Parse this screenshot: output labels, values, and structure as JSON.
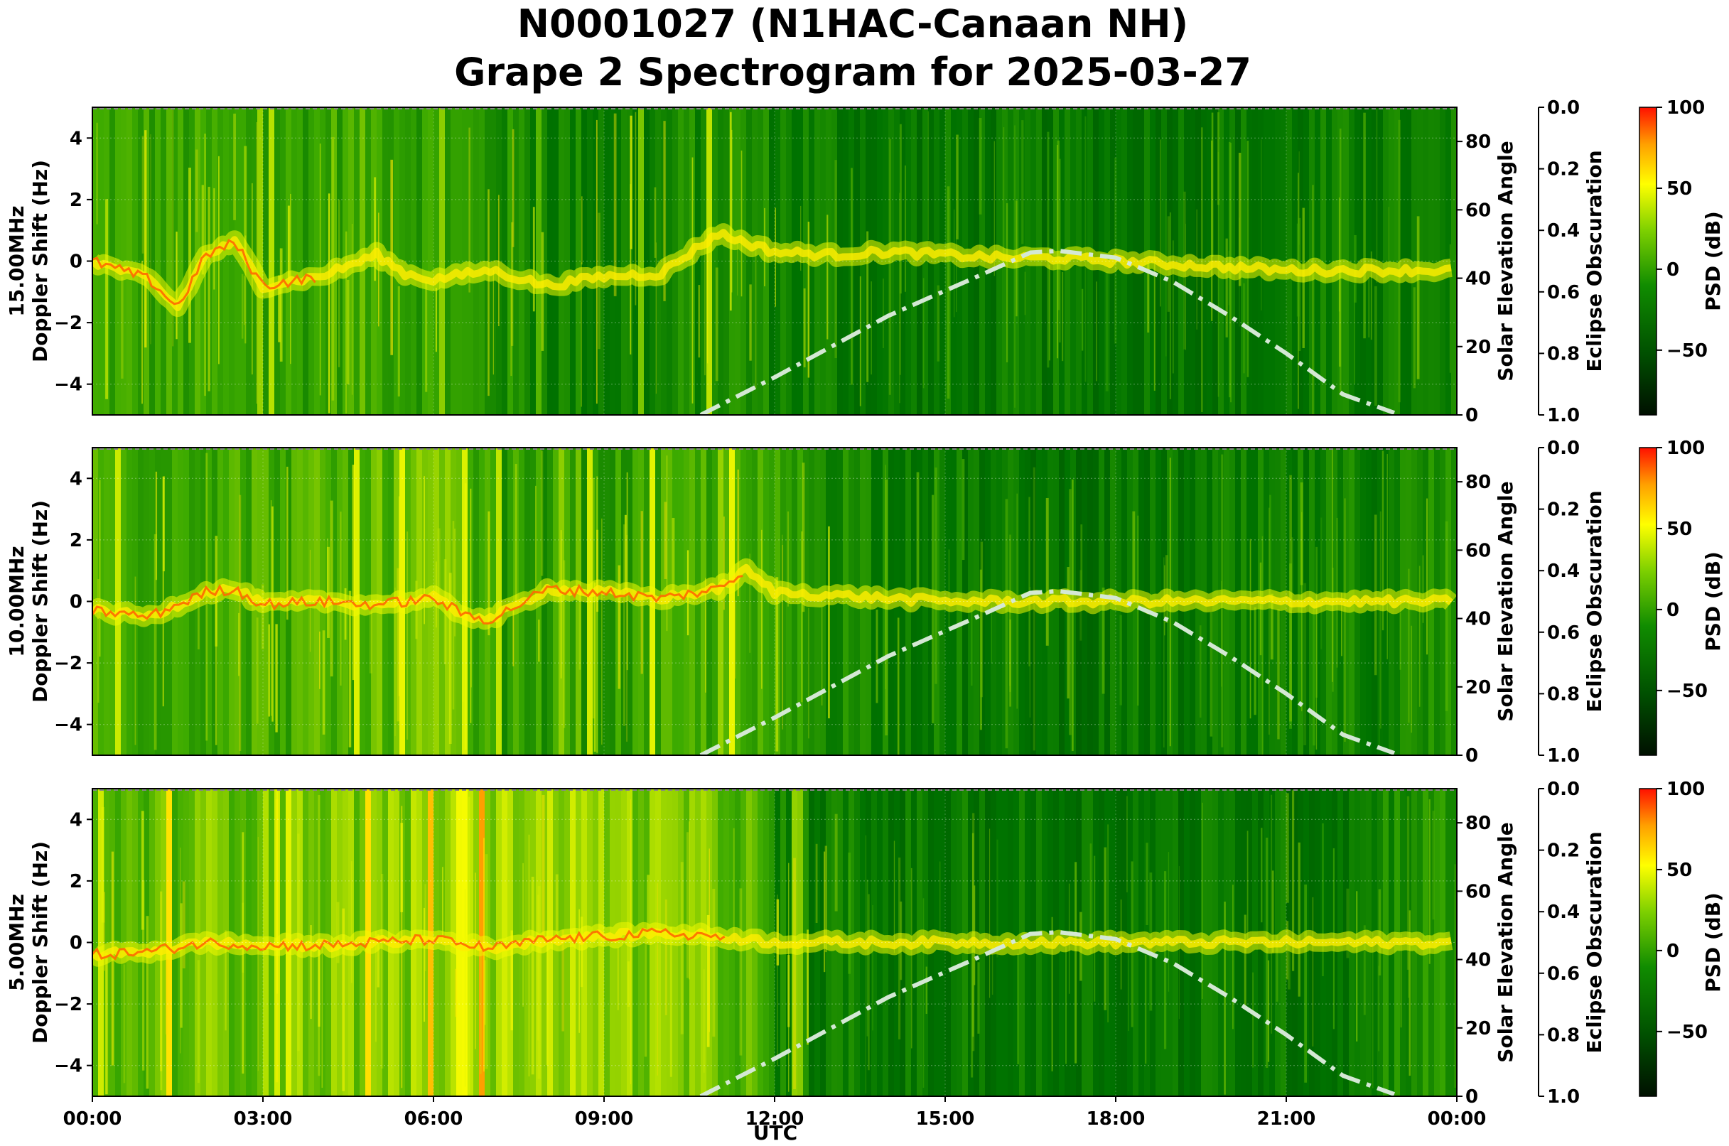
{
  "figure": {
    "title_line1": "N0001027 (N1HAC-Canaan NH)",
    "title_line2": "Grape 2 Spectrogram for 2025-03-27",
    "xlabel": "UTC",
    "x_tick_labels": [
      "00:00",
      "03:00",
      "06:00",
      "09:00",
      "12:00",
      "15:00",
      "18:00",
      "21:00",
      "00:00"
    ]
  },
  "colors": {
    "background": "#ffffff",
    "solar_curve": "#d4e8d4",
    "spectrogram_dark": "#006e00",
    "spectrogram_bright": "#ffff00",
    "spectrogram_peak": "#ff2000"
  },
  "chart_data": [
    {
      "type": "heatmap",
      "frequency_label": "15.00MHz",
      "ylabel": "Doppler Shift (Hz)",
      "ylim": [
        -5,
        5
      ],
      "y_ticks": [
        -4,
        -2,
        0,
        2,
        4
      ],
      "y_tick_labels": [
        "−4",
        "−2",
        "0",
        "2",
        "4"
      ],
      "xlim": [
        "00:00",
        "24:00"
      ],
      "solar_axis_label": "Solar Elevation Angle",
      "solar_ticks": [
        0,
        20,
        40,
        60,
        80
      ],
      "solar_ylim": [
        0,
        90
      ],
      "eclipse_axis_label": "Eclipse Obscuration",
      "eclipse_ticks": [
        "0.0",
        "0.2",
        "0.4",
        "0.6",
        "0.8",
        "1.0"
      ],
      "colorbar_label": "PSD (dB)",
      "colorbar_ticks": [
        "100",
        "50",
        "0",
        "−50"
      ],
      "colorbar_range": [
        -90,
        100
      ],
      "doppler_trace_hz": [
        [
          0,
          0
        ],
        [
          0.5,
          -0.3
        ],
        [
          1,
          -0.6
        ],
        [
          1.5,
          -1.5
        ],
        [
          2,
          0.2
        ],
        [
          2.5,
          0.6
        ],
        [
          3,
          -0.8
        ],
        [
          4,
          -0.5
        ],
        [
          5,
          0.2
        ],
        [
          5.5,
          -0.4
        ],
        [
          6,
          -0.6
        ],
        [
          7,
          -0.3
        ],
        [
          8,
          -0.8
        ],
        [
          9,
          -0.5
        ],
        [
          10,
          -0.4
        ],
        [
          11,
          0.9
        ],
        [
          12,
          0.3
        ],
        [
          13,
          0.2
        ],
        [
          14,
          0.3
        ],
        [
          15,
          0.2
        ],
        [
          16,
          0.1
        ],
        [
          17,
          0.1
        ],
        [
          18,
          0.0
        ],
        [
          19,
          -0.1
        ],
        [
          20,
          -0.2
        ],
        [
          21,
          -0.3
        ],
        [
          22,
          -0.3
        ],
        [
          23,
          -0.3
        ],
        [
          24,
          -0.3
        ]
      ],
      "solar_elevation_deg": [
        [
          10.7,
          0
        ],
        [
          12,
          11
        ],
        [
          14,
          29
        ],
        [
          15.5,
          40
        ],
        [
          16.5,
          47.5
        ],
        [
          17,
          48
        ],
        [
          18,
          46
        ],
        [
          19,
          39
        ],
        [
          20,
          29
        ],
        [
          21,
          18
        ],
        [
          22,
          6
        ],
        [
          23,
          0
        ]
      ]
    },
    {
      "type": "heatmap",
      "frequency_label": "10.00MHz",
      "ylabel": "Doppler Shift (Hz)",
      "ylim": [
        -5,
        5
      ],
      "y_ticks": [
        -4,
        -2,
        0,
        2,
        4
      ],
      "y_tick_labels": [
        "−4",
        "−2",
        "0",
        "2",
        "4"
      ],
      "xlim": [
        "00:00",
        "24:00"
      ],
      "solar_axis_label": "Solar Elevation Angle",
      "solar_ticks": [
        0,
        20,
        40,
        60,
        80
      ],
      "solar_ylim": [
        0,
        90
      ],
      "eclipse_axis_label": "Eclipse Obscuration",
      "eclipse_ticks": [
        "0.0",
        "0.2",
        "0.4",
        "0.6",
        "0.8",
        "1.0"
      ],
      "colorbar_label": "PSD (dB)",
      "colorbar_ticks": [
        "100",
        "50",
        "0",
        "−50"
      ],
      "colorbar_range": [
        -90,
        100
      ],
      "doppler_trace_hz": [
        [
          0,
          -0.3
        ],
        [
          1,
          -0.5
        ],
        [
          2,
          0.3
        ],
        [
          2.5,
          0.4
        ],
        [
          3,
          -0.1
        ],
        [
          4,
          0.0
        ],
        [
          5,
          -0.1
        ],
        [
          6,
          0.1
        ],
        [
          6.5,
          -0.4
        ],
        [
          7,
          -0.6
        ],
        [
          8,
          0.4
        ],
        [
          9,
          0.3
        ],
        [
          10,
          0.1
        ],
        [
          11,
          0.4
        ],
        [
          11.5,
          1.0
        ],
        [
          12,
          0.3
        ],
        [
          13,
          0.2
        ],
        [
          14,
          0.1
        ],
        [
          15,
          0.0
        ],
        [
          16,
          0.0
        ],
        [
          17,
          0.0
        ],
        [
          18,
          0.0
        ],
        [
          19,
          0.0
        ],
        [
          20,
          0.0
        ],
        [
          21,
          0.0
        ],
        [
          22,
          0.0
        ],
        [
          23,
          0.0
        ],
        [
          24,
          0.0
        ]
      ],
      "solar_elevation_deg": [
        [
          10.7,
          0
        ],
        [
          12,
          11
        ],
        [
          14,
          29
        ],
        [
          15.5,
          40
        ],
        [
          16.5,
          47.5
        ],
        [
          17,
          48
        ],
        [
          18,
          46
        ],
        [
          19,
          39
        ],
        [
          20,
          29
        ],
        [
          21,
          18
        ],
        [
          22,
          6
        ],
        [
          23,
          0
        ]
      ]
    },
    {
      "type": "heatmap",
      "frequency_label": "5.00MHz",
      "ylabel": "Doppler Shift (Hz)",
      "ylim": [
        -5,
        5
      ],
      "y_ticks": [
        -4,
        -2,
        0,
        2,
        4
      ],
      "y_tick_labels": [
        "−4",
        "−2",
        "0",
        "2",
        "4"
      ],
      "xlim": [
        "00:00",
        "24:00"
      ],
      "solar_axis_label": "Solar Elevation Angle",
      "solar_ticks": [
        0,
        20,
        40,
        60,
        80
      ],
      "solar_ylim": [
        0,
        90
      ],
      "eclipse_axis_label": "Eclipse Obscuration",
      "eclipse_ticks": [
        "0.0",
        "0.2",
        "0.4",
        "0.6",
        "0.8",
        "1.0"
      ],
      "colorbar_label": "PSD (dB)",
      "colorbar_ticks": [
        "100",
        "50",
        "0",
        "−50"
      ],
      "colorbar_range": [
        -90,
        100
      ],
      "doppler_trace_hz": [
        [
          0,
          -0.4
        ],
        [
          1,
          -0.3
        ],
        [
          2,
          0.0
        ],
        [
          3,
          -0.1
        ],
        [
          4,
          -0.1
        ],
        [
          5,
          0.0
        ],
        [
          6,
          0.1
        ],
        [
          7,
          -0.2
        ],
        [
          8,
          0.1
        ],
        [
          9,
          0.2
        ],
        [
          10,
          0.3
        ],
        [
          11,
          0.2
        ],
        [
          12,
          0.0
        ],
        [
          13,
          0.0
        ],
        [
          16,
          0.0
        ],
        [
          20,
          0.0
        ],
        [
          24,
          0.0
        ]
      ],
      "solar_elevation_deg": [
        [
          10.7,
          0
        ],
        [
          12,
          11
        ],
        [
          14,
          29
        ],
        [
          15.5,
          40
        ],
        [
          16.5,
          47.5
        ],
        [
          17,
          48
        ],
        [
          18,
          46
        ],
        [
          19,
          39
        ],
        [
          20,
          29
        ],
        [
          21,
          18
        ],
        [
          22,
          6
        ],
        [
          23,
          0
        ]
      ]
    }
  ]
}
